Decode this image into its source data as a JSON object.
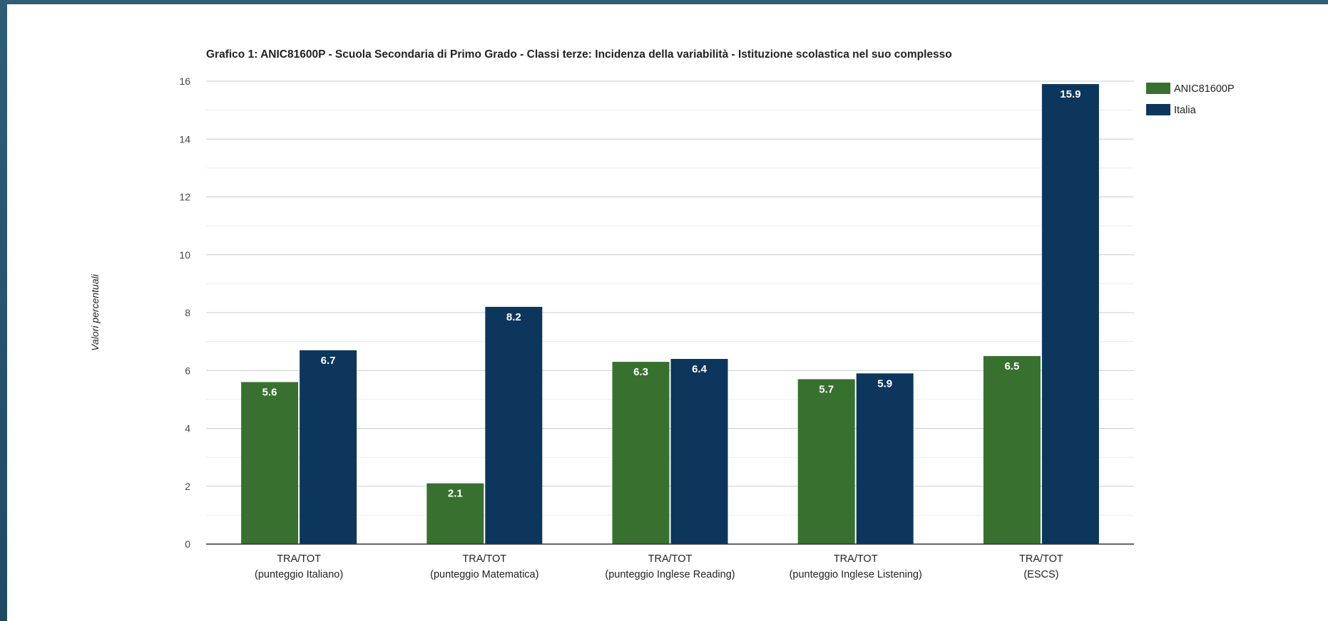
{
  "chart_data": {
    "type": "bar",
    "title": "Grafico 1: ANIC81600P - Scuola Secondaria di Primo Grado - Classi terze: Incidenza della variabilità - Istituzione scolastica nel suo complesso",
    "ylabel": "Valori percentuali",
    "xlabel": "",
    "ylim": [
      0,
      16
    ],
    "yticks": [
      0,
      2,
      4,
      6,
      8,
      10,
      12,
      14,
      16
    ],
    "grid": true,
    "legend_position": "right",
    "categories": [
      [
        "TRA/TOT",
        "(punteggio Italiano)"
      ],
      [
        "TRA/TOT",
        "(punteggio Matematica)"
      ],
      [
        "TRA/TOT",
        "(punteggio Inglese Reading)"
      ],
      [
        "TRA/TOT",
        "(punteggio Inglese Listening)"
      ],
      [
        "TRA/TOT",
        "(ESCS)"
      ]
    ],
    "series": [
      {
        "name": "ANIC81600P",
        "color": "#38712f",
        "values": [
          5.6,
          2.1,
          6.3,
          5.7,
          6.5
        ]
      },
      {
        "name": "Italia",
        "color": "#0c365c",
        "values": [
          6.7,
          8.2,
          6.4,
          5.9,
          15.9
        ]
      }
    ]
  }
}
